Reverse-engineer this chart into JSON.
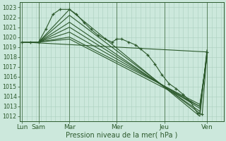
{
  "xlabel": "Pression niveau de la mer( hPa )",
  "bg_color": "#cce8dc",
  "grid_color": "#aacfbf",
  "line_color": "#2d5a2d",
  "ylim": [
    1011.5,
    1023.5
  ],
  "yticks": [
    1012,
    1013,
    1014,
    1015,
    1016,
    1017,
    1018,
    1019,
    1020,
    1021,
    1022,
    1023
  ],
  "x_day_pos": [
    0,
    0.7,
    2.0,
    4.0,
    6.0,
    7.8
  ],
  "x_day_labels": [
    "Lun",
    "Sam",
    "Mar",
    "Mer",
    "Jeu",
    "Ven"
  ],
  "xlim": [
    -0.1,
    8.5
  ],
  "forecast_lines": [
    {
      "x": [
        0.0,
        0.7,
        2.0,
        7.5,
        7.8
      ],
      "y": [
        1019.5,
        1019.5,
        1022.8,
        1012.0,
        1018.7
      ]
    },
    {
      "x": [
        0.0,
        0.7,
        2.0,
        7.5,
        7.8
      ],
      "y": [
        1019.5,
        1019.5,
        1022.2,
        1012.3,
        1018.5
      ]
    },
    {
      "x": [
        0.0,
        0.7,
        2.0,
        7.5,
        7.8
      ],
      "y": [
        1019.5,
        1019.5,
        1021.5,
        1012.5,
        1018.3
      ]
    },
    {
      "x": [
        0.0,
        0.7,
        2.0,
        7.5,
        7.8
      ],
      "y": [
        1019.5,
        1019.5,
        1021.0,
        1012.8,
        1018.2
      ]
    },
    {
      "x": [
        0.0,
        0.7,
        2.0,
        7.5,
        7.8
      ],
      "y": [
        1019.5,
        1019.5,
        1020.5,
        1013.0,
        1018.0
      ]
    },
    {
      "x": [
        0.0,
        0.7,
        2.0,
        7.5,
        7.8
      ],
      "y": [
        1019.5,
        1019.5,
        1020.0,
        1013.2,
        1018.0
      ]
    },
    {
      "x": [
        0.0,
        0.7,
        2.0,
        7.5,
        7.8
      ],
      "y": [
        1019.5,
        1019.5,
        1019.8,
        1013.0,
        1018.2
      ]
    },
    {
      "x": [
        0.0,
        7.8
      ],
      "y": [
        1019.5,
        1018.5
      ]
    }
  ],
  "obs_line_x": [
    0.0,
    0.35,
    0.7,
    1.0,
    1.3,
    1.6,
    2.0,
    2.3,
    2.6,
    2.9,
    3.2,
    3.5,
    3.8,
    4.0,
    4.2,
    4.5,
    4.8,
    5.0,
    5.3,
    5.6,
    5.9,
    6.2,
    6.5,
    6.8,
    7.1,
    7.4,
    7.6,
    7.8
  ],
  "obs_line_y": [
    1019.5,
    1019.5,
    1019.5,
    1020.8,
    1022.3,
    1022.8,
    1022.8,
    1022.3,
    1021.5,
    1020.8,
    1020.2,
    1019.8,
    1019.5,
    1019.8,
    1019.8,
    1019.5,
    1019.2,
    1018.8,
    1018.2,
    1017.3,
    1016.2,
    1015.3,
    1014.8,
    1014.2,
    1013.5,
    1012.3,
    1012.2,
    1018.5
  ]
}
